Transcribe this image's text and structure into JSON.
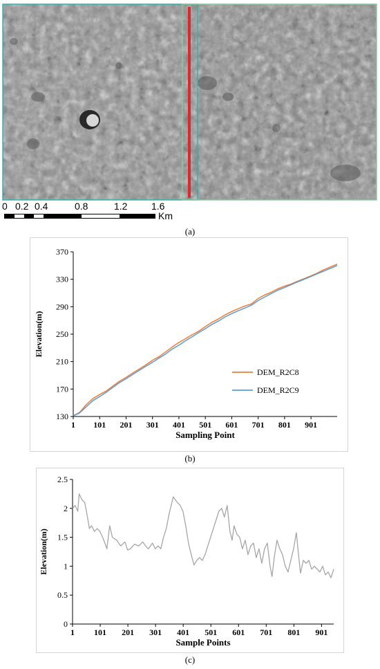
{
  "panel_a": {
    "caption": "(a)",
    "scale_ticks": [
      "0",
      "0.2",
      "0.4",
      "0.8",
      "1.2",
      "1.6"
    ],
    "scale_unit": "Km",
    "colors": {
      "profile_line": "#e3262b",
      "tile_border_left": "#2fb3b0",
      "tile_border_right": "#86c99b"
    }
  },
  "chart_data": [
    {
      "type": "line",
      "caption": "(b)",
      "title": "",
      "xlabel": "Sampling Point",
      "ylabel": "Elevation(m)",
      "xlim": [
        1,
        1000
      ],
      "ylim": [
        130,
        370
      ],
      "x_ticks": [
        "1",
        "101",
        "201",
        "301",
        "401",
        "501",
        "601",
        "701",
        "801",
        "901"
      ],
      "y_ticks": [
        "130",
        "170",
        "210",
        "250",
        "290",
        "330",
        "370"
      ],
      "legend_position": "middle-right",
      "grid": false,
      "series": [
        {
          "name": "DEM_R2C8",
          "color": "#ed7d31",
          "x": [
            1,
            25,
            50,
            75,
            101,
            125,
            150,
            175,
            201,
            225,
            250,
            275,
            301,
            325,
            350,
            375,
            401,
            425,
            450,
            475,
            501,
            525,
            550,
            575,
            601,
            625,
            650,
            675,
            701,
            725,
            750,
            775,
            801,
            825,
            850,
            875,
            901,
            925,
            950,
            975,
            1000
          ],
          "y": [
            131,
            136,
            147,
            156,
            162,
            167,
            174,
            181,
            187,
            193,
            199,
            205,
            212,
            217,
            224,
            231,
            238,
            243,
            249,
            254,
            261,
            267,
            272,
            278,
            283,
            287,
            291,
            294,
            302,
            307,
            311,
            316,
            320,
            323,
            327,
            331,
            335,
            339,
            344,
            348,
            352
          ]
        },
        {
          "name": "DEM_R2C9",
          "color": "#5b9bd5",
          "x": [
            1,
            25,
            50,
            75,
            101,
            125,
            150,
            175,
            201,
            225,
            250,
            275,
            301,
            325,
            350,
            375,
            401,
            425,
            450,
            475,
            501,
            525,
            550,
            575,
            601,
            625,
            650,
            675,
            701,
            725,
            750,
            775,
            801,
            825,
            850,
            875,
            901,
            925,
            950,
            975,
            1000
          ],
          "y": [
            131,
            135,
            144,
            153,
            159,
            165,
            172,
            179,
            185,
            191,
            197,
            203,
            209,
            215,
            221,
            228,
            234,
            240,
            246,
            252,
            258,
            264,
            269,
            275,
            280,
            284,
            288,
            292,
            299,
            304,
            309,
            314,
            318,
            322,
            326,
            330,
            334,
            338,
            342,
            346,
            350
          ]
        }
      ]
    },
    {
      "type": "line",
      "caption": "(c)",
      "title": "",
      "xlabel": "Sample Points",
      "ylabel": "Elevation(m)",
      "xlim": [
        1,
        945
      ],
      "ylim": [
        0,
        2.5
      ],
      "x_ticks": [
        "1",
        "101",
        "201",
        "301",
        "401",
        "501",
        "601",
        "701",
        "801",
        "901"
      ],
      "y_ticks": [
        "0",
        "0.5",
        "1",
        "1.5",
        "2",
        "2.5"
      ],
      "grid": false,
      "series": [
        {
          "color": "#a5a5a5",
          "x": [
            1,
            10,
            20,
            25,
            35,
            45,
            55,
            62,
            70,
            80,
            90,
            100,
            110,
            118,
            125,
            135,
            145,
            160,
            175,
            190,
            200,
            210,
            225,
            240,
            255,
            265,
            275,
            290,
            300,
            310,
            320,
            330,
            340,
            350,
            360,
            365,
            372,
            380,
            390,
            400,
            410,
            420,
            430,
            440,
            450,
            460,
            470,
            480,
            490,
            500,
            510,
            520,
            530,
            540,
            550,
            560,
            570,
            578,
            585,
            595,
            605,
            615,
            625,
            635,
            645,
            655,
            665,
            675,
            685,
            695,
            705,
            715,
            722,
            730,
            740,
            750,
            760,
            770,
            780,
            790,
            800,
            810,
            818,
            825,
            835,
            845,
            855,
            865,
            875,
            885,
            895,
            905,
            915,
            925,
            935,
            945
          ],
          "y": [
            2.0,
            2.05,
            1.95,
            2.25,
            2.15,
            2.1,
            1.85,
            1.65,
            1.7,
            1.6,
            1.65,
            1.6,
            1.5,
            1.4,
            1.3,
            1.7,
            1.5,
            1.45,
            1.35,
            1.42,
            1.28,
            1.3,
            1.38,
            1.35,
            1.42,
            1.35,
            1.3,
            1.4,
            1.3,
            1.35,
            1.3,
            1.5,
            1.65,
            1.9,
            2.1,
            2.2,
            2.15,
            2.1,
            2.05,
            1.95,
            1.7,
            1.4,
            1.2,
            1.02,
            1.1,
            1.15,
            1.1,
            1.2,
            1.35,
            1.5,
            1.65,
            1.8,
            1.95,
            2.0,
            1.85,
            2.05,
            1.6,
            1.45,
            1.7,
            1.55,
            1.5,
            1.3,
            1.45,
            1.2,
            1.35,
            1.4,
            1.15,
            1.3,
            1.05,
            1.3,
            1.4,
            1.0,
            0.82,
            1.15,
            1.45,
            1.3,
            1.2,
            1.0,
            0.9,
            1.1,
            1.3,
            1.58,
            1.2,
            0.88,
            1.1,
            1.05,
            1.1,
            0.95,
            1.0,
            0.95,
            0.9,
            1.0,
            0.85,
            0.9,
            0.8,
            0.95
          ]
        }
      ]
    }
  ]
}
